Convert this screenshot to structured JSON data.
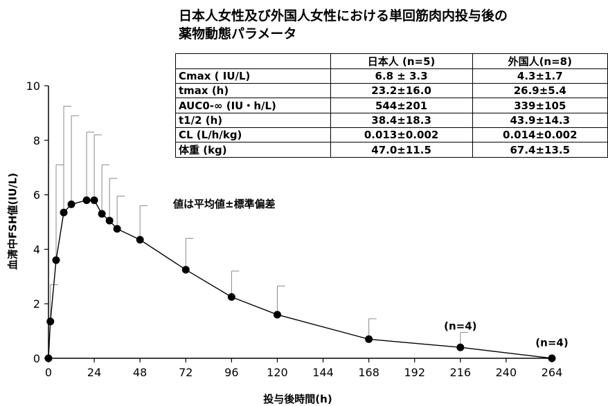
{
  "chart_data": {
    "type": "line",
    "xlabel": "投与後時間(h)",
    "ylabel": "血清中FSH値(IU/L)",
    "xlim": [
      0,
      264
    ],
    "ylim": [
      0,
      10
    ],
    "x_ticks": [
      "0",
      "24",
      "48",
      "72",
      "96",
      "120",
      "144",
      "168",
      "192",
      "216",
      "240",
      "264"
    ],
    "y_ticks": [
      "0",
      "2",
      "4",
      "6",
      "8",
      "10"
    ],
    "grid": false,
    "series": [
      {
        "points": [
          {
            "x": 0,
            "y": 0,
            "err": 0
          },
          {
            "x": 1,
            "y": 1.35,
            "err": 1.35
          },
          {
            "x": 4,
            "y": 3.6,
            "err": 3.5
          },
          {
            "x": 8,
            "y": 5.35,
            "err": 3.9
          },
          {
            "x": 12,
            "y": 5.65,
            "err": 3.25
          },
          {
            "x": 20,
            "y": 5.8,
            "err": 2.5
          },
          {
            "x": 24,
            "y": 5.8,
            "err": 2.4
          },
          {
            "x": 28,
            "y": 5.3,
            "err": 1.8
          },
          {
            "x": 32,
            "y": 5.05,
            "err": 1.55
          },
          {
            "x": 36,
            "y": 4.75,
            "err": 1.2
          },
          {
            "x": 48,
            "y": 4.35,
            "err": 1.25
          },
          {
            "x": 72,
            "y": 3.25,
            "err": 1.15
          },
          {
            "x": 96,
            "y": 2.25,
            "err": 0.95
          },
          {
            "x": 120,
            "y": 1.6,
            "err": 1.05
          },
          {
            "x": 168,
            "y": 0.7,
            "err": 0.75
          },
          {
            "x": 216,
            "y": 0.4,
            "err": 0.55
          },
          {
            "x": 264,
            "y": 0,
            "err": 0
          }
        ]
      }
    ],
    "annotations": [
      {
        "x": 216,
        "y": 1.05,
        "text": "(n=4)"
      },
      {
        "x": 264,
        "y": 0.45,
        "text": "(n=4)"
      }
    ]
  },
  "inset": {
    "title_line1": "日本人女性及び外国人女性における単回筋肉内投与後の",
    "title_line2": "薬物動態パラメータ",
    "header": [
      "",
      "日本人 (n=5)",
      "外国人(n=8)"
    ],
    "rows": [
      {
        "param": "Cmax ( IU/L)",
        "jp": "6.8 ± 3.3",
        "foreign": "4.3±1.7"
      },
      {
        "param": "tmax (h)",
        "jp": "23.2±16.0",
        "foreign": "26.9±5.4"
      },
      {
        "param": "AUC0-∞ (IU・h/L)",
        "jp": "544±201",
        "foreign": "339±105"
      },
      {
        "param": "t1/2 (h)",
        "jp": "38.4±18.3",
        "foreign": "43.9±14.3"
      },
      {
        "param": "CL (L/h/kg)",
        "jp": "0.013±0.002",
        "foreign": "0.014±0.002"
      },
      {
        "param": "体重 (kg)",
        "jp": "47.0±11.5",
        "foreign": "67.4±13.5"
      }
    ],
    "note": "値は平均値±標準偏差"
  }
}
